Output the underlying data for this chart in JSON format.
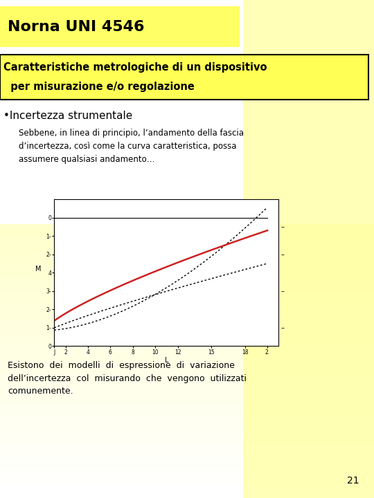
{
  "bg_color_top": "#fffff0",
  "bg_color": "#ffffa0",
  "title_text": "Norna UNI 4546",
  "title_bg": "#ffff66",
  "subtitle_line1": "Caratteristiche metrologiche di un dispositivo",
  "subtitle_line2": "  per misurazione e/o regolazione",
  "subtitle_bg": "#ffff55",
  "bullet_text": "•Incertezza strumentale",
  "body_text": "Sebbene, in linea di principio, l’andamento della fascia\nd’incertezza, così come la curva caratteristica, possa\nassumere qualsiasi andamento…",
  "footer_text": "Esistono  dei  modelli  di  espressione  di  variazione\ndell’incertezza  col  misurando  che  vengono  utilizzati\ncomunemente.",
  "page_number": "21",
  "plot_xlabel": "L",
  "plot_ylabel": "M"
}
